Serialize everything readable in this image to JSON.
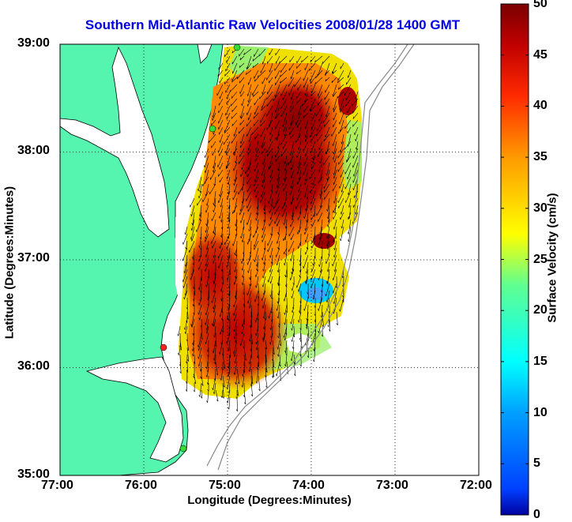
{
  "title": "Southern Mid-Atlantic Raw Velocities 2008/01/28 1400 GMT",
  "x_axis": {
    "label": "Longitude (Degrees:Minutes)",
    "ticks": [
      "77:00",
      "76:00",
      "75:00",
      "74:00",
      "73:00",
      "72:00"
    ]
  },
  "y_axis": {
    "label": "Latitude (Degrees:Minutes)",
    "ticks": [
      "39:00",
      "38:00",
      "37:00",
      "36:00",
      "35:00"
    ]
  },
  "colorbar": {
    "label": "Surface Velocity (cm/s)",
    "ticks": [
      "50",
      "45",
      "40",
      "35",
      "30",
      "25",
      "20",
      "15",
      "10",
      "5",
      "0"
    ],
    "min": 0,
    "max": 50,
    "colormap": "jet"
  },
  "colors": {
    "land": "#55f5b0",
    "water": "#ffffff",
    "title": "#0000e6",
    "station_green": "#33dd33",
    "station_red": "#ff2222"
  },
  "map": {
    "lon_range": [
      -77,
      -72
    ],
    "lat_range": [
      35,
      39
    ],
    "grid": "dotted"
  }
}
